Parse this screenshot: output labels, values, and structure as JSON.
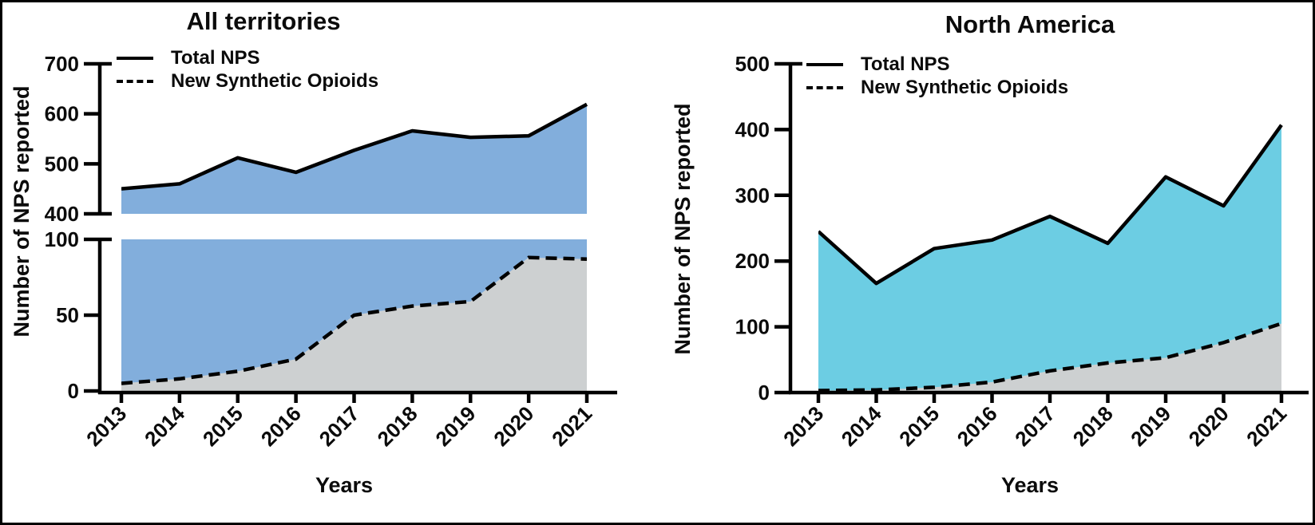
{
  "chart_data": [
    {
      "type": "area",
      "title": "All territories",
      "xlabel": "Years",
      "ylabel": "Number of NPS reported",
      "categories": [
        "2013",
        "2014",
        "2015",
        "2016",
        "2017",
        "2018",
        "2019",
        "2020",
        "2021"
      ],
      "series": [
        {
          "name": "Total NPS",
          "line_style": "solid",
          "fill": "#82AEDC",
          "values": [
            450,
            460,
            512,
            483,
            527,
            566,
            553,
            556,
            619
          ]
        },
        {
          "name": "New Synthetic Opioids",
          "line_style": "dashed",
          "fill": "#CDD0D1",
          "values": [
            5,
            8,
            13,
            21,
            50,
            56,
            59,
            88,
            87
          ]
        }
      ],
      "y_axis": {
        "broken": true,
        "segments": [
          {
            "range": [
              400,
              700
            ],
            "ticks": [
              400,
              500,
              600,
              700
            ]
          },
          {
            "range": [
              0,
              100
            ],
            "ticks": [
              0,
              50,
              100
            ]
          }
        ]
      },
      "line_color": "#000000",
      "legend_position": "top-left",
      "grid": false
    },
    {
      "type": "area",
      "title": "North America",
      "xlabel": "Years",
      "ylabel": "Number of NPS reported",
      "categories": [
        "2013",
        "2014",
        "2015",
        "2016",
        "2017",
        "2018",
        "2019",
        "2020",
        "2021"
      ],
      "series": [
        {
          "name": "Total NPS",
          "line_style": "solid",
          "fill": "#6CCDE3",
          "values": [
            245,
            166,
            219,
            232,
            268,
            227,
            328,
            284,
            407
          ]
        },
        {
          "name": "New Synthetic Opioids",
          "line_style": "dashed",
          "fill": "#CDD0D1",
          "values": [
            3,
            4,
            8,
            16,
            33,
            45,
            53,
            76,
            105
          ]
        }
      ],
      "y_axis": {
        "broken": false,
        "segments": [
          {
            "range": [
              0,
              500
            ],
            "ticks": [
              0,
              100,
              200,
              300,
              400,
              500
            ]
          }
        ]
      },
      "line_color": "#000000",
      "legend_position": "top-left",
      "grid": false
    }
  ]
}
